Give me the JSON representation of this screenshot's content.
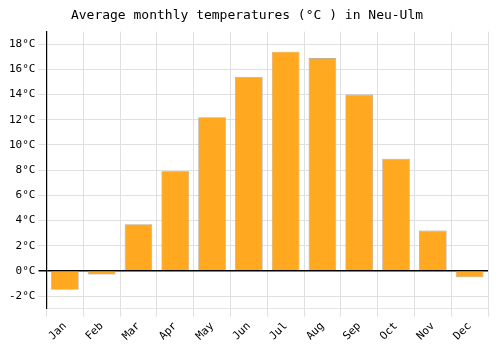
{
  "chart_data": {
    "type": "bar",
    "title": "Average monthly temperatures (°C ) in Neu-Ulm",
    "categories": [
      "Jan",
      "Feb",
      "Mar",
      "Apr",
      "May",
      "Jun",
      "Jul",
      "Aug",
      "Sep",
      "Oct",
      "Nov",
      "Dec"
    ],
    "values": [
      -1.5,
      -0.3,
      3.7,
      7.9,
      12.2,
      15.4,
      17.4,
      16.9,
      14.0,
      8.9,
      3.2,
      -0.5
    ],
    "color": "#FFA820",
    "ylim": [
      -3,
      19
    ],
    "yticks": [
      {
        "value": -2,
        "label": "-2°C"
      },
      {
        "value": 0,
        "label": "0°C"
      },
      {
        "value": 2,
        "label": "2°C"
      },
      {
        "value": 4,
        "label": "4°C"
      },
      {
        "value": 6,
        "label": "6°C"
      },
      {
        "value": 8,
        "label": "8°C"
      },
      {
        "value": 10,
        "label": "10°C"
      },
      {
        "value": 12,
        "label": "12°C"
      },
      {
        "value": 14,
        "label": "14°C"
      },
      {
        "value": 16,
        "label": "16°C"
      },
      {
        "value": 18,
        "label": "18°C"
      }
    ],
    "grid": true
  }
}
